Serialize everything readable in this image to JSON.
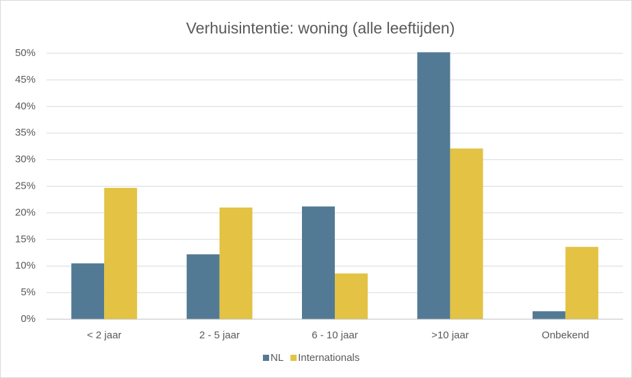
{
  "chart_data": {
    "type": "bar",
    "title": "Verhuisintentie: woning (alle leeftijden)",
    "categories": [
      "< 2 jaar",
      "2 - 5 jaar",
      "6 - 10 jaar",
      ">10 jaar",
      "Onbekend"
    ],
    "series": [
      {
        "name": "NL",
        "color": "#527a94",
        "values": [
          10.5,
          12.2,
          21.2,
          50.2,
          1.5
        ]
      },
      {
        "name": "Internationals",
        "color": "#e3c244",
        "values": [
          24.7,
          21.0,
          8.6,
          32.1,
          13.6
        ]
      }
    ],
    "ylim": [
      0,
      50
    ],
    "yticks": [
      {
        "value": 0,
        "label": "0%"
      },
      {
        "value": 5,
        "label": "5%"
      },
      {
        "value": 10,
        "label": "10%"
      },
      {
        "value": 15,
        "label": "15%"
      },
      {
        "value": 20,
        "label": "20%"
      },
      {
        "value": 25,
        "label": "25%"
      },
      {
        "value": 30,
        "label": "30%"
      },
      {
        "value": 35,
        "label": "35%"
      },
      {
        "value": 40,
        "label": "40%"
      },
      {
        "value": 45,
        "label": "45%"
      },
      {
        "value": 50,
        "label": "50%"
      }
    ],
    "grid": true,
    "legend": "bottom"
  }
}
